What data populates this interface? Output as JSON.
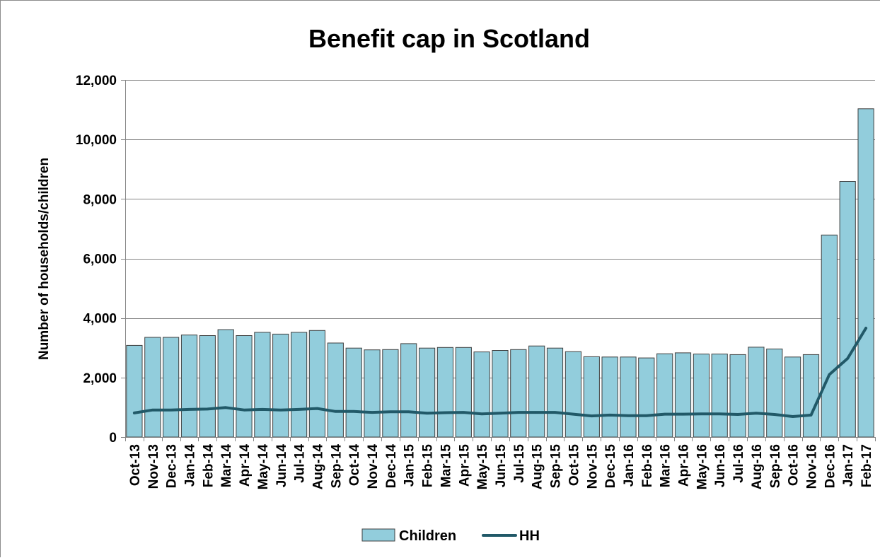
{
  "chart_data": {
    "type": "bar",
    "title": "Benefit cap in Scotland",
    "ylabel": "Number of households/children",
    "xlabel": "",
    "ylim": [
      0,
      12000
    ],
    "yticks": [
      "0",
      "2,000",
      "4,000",
      "6,000",
      "8,000",
      "10,000",
      "12,000"
    ],
    "ytick_values": [
      0,
      2000,
      4000,
      6000,
      8000,
      10000,
      12000
    ],
    "grid": true,
    "legend_position": "bottom",
    "categories": [
      "Oct-13",
      "Nov-13",
      "Dec-13",
      "Jan-14",
      "Feb-14",
      "Mar-14",
      "Apr-14",
      "May-14",
      "Jun-14",
      "Jul-14",
      "Aug-14",
      "Sep-14",
      "Oct-14",
      "Nov-14",
      "Dec-14",
      "Jan-15",
      "Feb-15",
      "Mar-15",
      "Apr-15",
      "May-15",
      "Jun-15",
      "Jul-15",
      "Aug-15",
      "Sep-15",
      "Oct-15",
      "Nov-15",
      "Dec-15",
      "Jan-16",
      "Feb-16",
      "Mar-16",
      "Apr-16",
      "May-16",
      "Jun-16",
      "Jul-16",
      "Aug-16",
      "Sep-16",
      "Oct-16",
      "Nov-16",
      "Dec-16",
      "Jan-17",
      "Feb-17"
    ],
    "series": [
      {
        "name": "Children",
        "type": "bar",
        "color": "#92CDDC",
        "values": [
          3080,
          3350,
          3350,
          3430,
          3410,
          3610,
          3410,
          3520,
          3460,
          3520,
          3580,
          3160,
          2990,
          2930,
          2940,
          3140,
          2990,
          3010,
          3010,
          2860,
          2910,
          2940,
          3060,
          2990,
          2870,
          2700,
          2690,
          2690,
          2660,
          2800,
          2830,
          2790,
          2790,
          2770,
          3020,
          2960,
          2690,
          2770,
          6790,
          8590,
          11030
        ]
      },
      {
        "name": "HH",
        "type": "line",
        "color": "#215968",
        "values": [
          810,
          910,
          910,
          930,
          940,
          990,
          910,
          930,
          910,
          930,
          960,
          860,
          860,
          830,
          850,
          850,
          800,
          820,
          830,
          780,
          800,
          830,
          830,
          830,
          770,
          710,
          740,
          720,
          720,
          770,
          770,
          780,
          780,
          760,
          800,
          760,
          690,
          740,
          2100,
          2640,
          3660
        ]
      }
    ]
  }
}
